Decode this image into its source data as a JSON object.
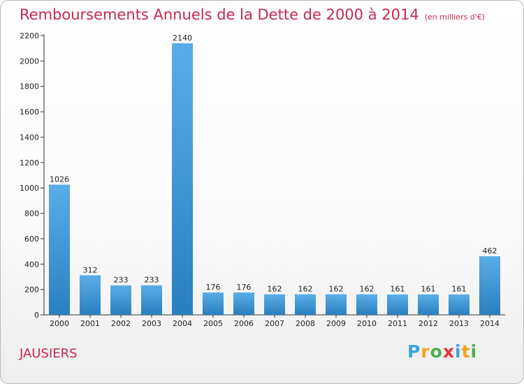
{
  "title": "Remboursements Annuels de la Dette de 2000 à 2014",
  "unit": "(en milliers d'€)",
  "commune": "JAUSIERS",
  "logo": {
    "letters": [
      {
        "ch": "P",
        "color": "#3aa3df"
      },
      {
        "ch": "r",
        "color": "#f5a21b"
      },
      {
        "ch": "o",
        "color": "#4caf50"
      },
      {
        "ch": "x",
        "color": "#e8343c"
      },
      {
        "ch": "i",
        "color": "#3aa3df"
      },
      {
        "ch": "t",
        "color": "#f5a21b"
      },
      {
        "ch": "i",
        "color": "#4caf50"
      }
    ]
  },
  "colors": {
    "title": "#c8284f",
    "bar_top": "#5aade6",
    "bar_bottom": "#2a7fbf"
  },
  "chart_data": {
    "type": "bar",
    "categories": [
      "2000",
      "2001",
      "2002",
      "2003",
      "2004",
      "2005",
      "2006",
      "2007",
      "2008",
      "2009",
      "2010",
      "2011",
      "2012",
      "2013",
      "2014"
    ],
    "values": [
      1026,
      312,
      233,
      233,
      2140,
      176,
      176,
      162,
      162,
      162,
      162,
      161,
      161,
      161,
      462
    ],
    "data_labels": [
      "1026",
      "312",
      "233",
      "233",
      "2140",
      "176",
      "176",
      "162",
      "162",
      "162",
      "162",
      "161",
      "161",
      "161",
      "462"
    ],
    "ylim": [
      0,
      2200
    ],
    "yticks": [
      0,
      200,
      400,
      600,
      800,
      1000,
      1200,
      1400,
      1600,
      1800,
      2000,
      2200
    ],
    "grid": false,
    "legend": "none"
  }
}
